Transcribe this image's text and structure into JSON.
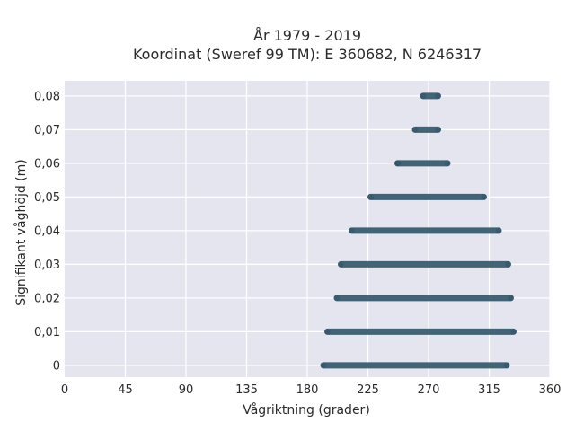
{
  "chart_data": {
    "type": "scatter",
    "title": "År 1979 - 2019",
    "subtitle": "Koordinat (Sweref 99 TM): E 360682, N 6246317",
    "xlabel": "Vågriktning (grader)",
    "ylabel": "Signifikant våghöjd (m)",
    "xlim": [
      0,
      360
    ],
    "ylim": [
      -0.0035,
      0.0845
    ],
    "x_ticks": [
      0,
      45,
      90,
      135,
      180,
      225,
      270,
      315,
      360
    ],
    "x_tick_labels": [
      "0",
      "45",
      "90",
      "135",
      "180",
      "225",
      "270",
      "315",
      "360"
    ],
    "y_ticks": [
      0,
      0.01,
      0.02,
      0.03,
      0.04,
      0.05,
      0.06,
      0.07,
      0.08
    ],
    "y_tick_labels": [
      "0",
      "0,01",
      "0,02",
      "0,03",
      "0,04",
      "0,05",
      "0,06",
      "0,07",
      "0,08"
    ],
    "grid": true,
    "background_color": "#e5e5f0",
    "marker_color": "#2f5468",
    "bands": [
      {
        "y": 0.0,
        "x_min": 192,
        "x_max": 328
      },
      {
        "y": 0.01,
        "x_min": 195,
        "x_max": 333
      },
      {
        "y": 0.02,
        "x_min": 202,
        "x_max": 331
      },
      {
        "y": 0.03,
        "x_min": 205,
        "x_max": 329
      },
      {
        "y": 0.04,
        "x_min": 213,
        "x_max": 322
      },
      {
        "y": 0.05,
        "x_min": 227,
        "x_max": 311
      },
      {
        "y": 0.06,
        "x_min": 247,
        "x_max": 284
      },
      {
        "y": 0.07,
        "x_min": 260,
        "x_max": 277
      },
      {
        "y": 0.08,
        "x_min": 266,
        "x_max": 277
      }
    ],
    "outliers": [
      {
        "x": 247,
        "y": 0.06
      }
    ]
  }
}
